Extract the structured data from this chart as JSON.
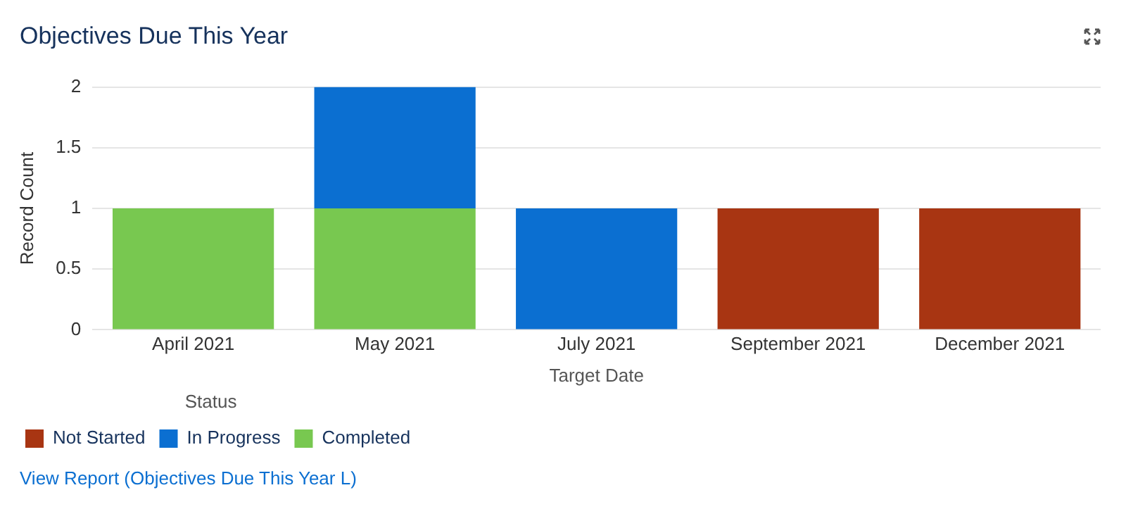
{
  "chart_data": {
    "type": "bar",
    "title": "Objectives Due This Year",
    "xlabel": "Target Date",
    "ylabel": "Record Count",
    "legend_title": "Status",
    "categories": [
      "April 2021",
      "May 2021",
      "July 2021",
      "September 2021",
      "December 2021"
    ],
    "stacked": true,
    "series": [
      {
        "name": "Completed",
        "color": "#78c850",
        "values": [
          1,
          1,
          null,
          null,
          null
        ]
      },
      {
        "name": "In Progress",
        "color": "#0b6fd1",
        "values": [
          null,
          1,
          1,
          null,
          null
        ]
      },
      {
        "name": "Not Started",
        "color": "#a83512",
        "values": [
          null,
          null,
          null,
          1,
          1
        ]
      }
    ],
    "ylim": [
      0,
      2
    ],
    "yticks": [
      0,
      0.5,
      1,
      1.5,
      2
    ],
    "grid": "y",
    "legend": "bottom left",
    "annotations": [
      "View Report (Objectives Due This Year L)"
    ]
  }
}
